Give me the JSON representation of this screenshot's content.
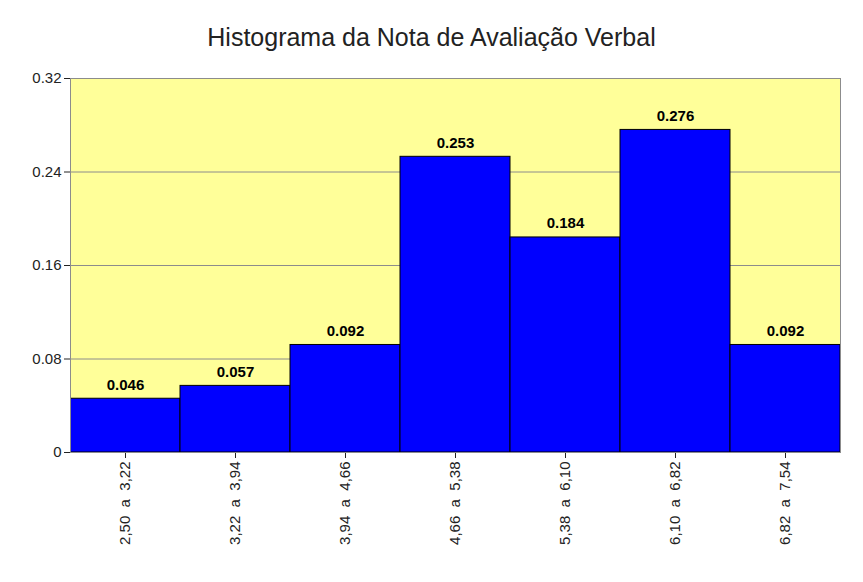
{
  "chart_data": {
    "type": "bar",
    "title": "Histograma da Nota de Avaliação Verbal",
    "categories": [
      "2,50  a  3,22",
      "3,22  a  3,94",
      "3,94  a  4,66",
      "4,66  a  5,38",
      "5,38  a  6,10",
      "6,10  a  6,82",
      "6,82  a  7,54"
    ],
    "values": [
      0.046,
      0.057,
      0.092,
      0.253,
      0.184,
      0.276,
      0.092
    ],
    "color": "#0000ff",
    "ylim": [
      0,
      0.32
    ],
    "yticks": [
      0,
      0.08,
      0.16,
      0.24,
      0.32
    ],
    "grid": true,
    "data_labels": true
  }
}
